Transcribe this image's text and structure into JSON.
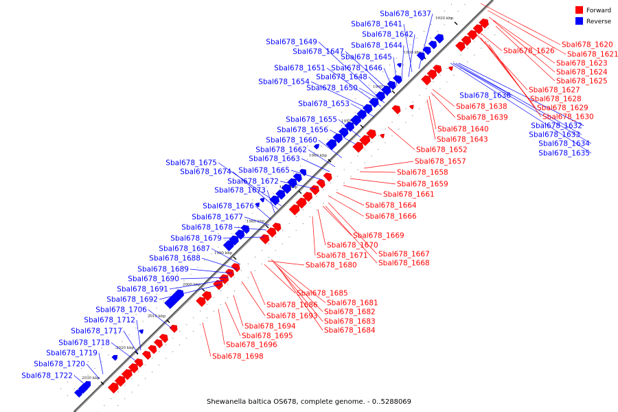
{
  "title": "Shewanella baltica OS678, complete genome. - 0..5288069",
  "legend": [
    {
      "label": "Forward",
      "color": "#ff0000"
    },
    {
      "label": "Reverse",
      "color": "#0000ff"
    }
  ],
  "colors": {
    "forward": "#ff0000",
    "reverse": "#0000ff",
    "axis": "#444444"
  },
  "ticks": [
    "1920 kbp",
    "1930 kbp",
    "1940 kbp",
    "1950 kbp",
    "1960 kbp",
    "1970 kbp",
    "1980 kbp",
    "1990 kbp",
    "2000 kbp",
    "2010 kbp",
    "2020 kbp",
    "2030 kbp"
  ],
  "forward_labels": [
    "Sbal678_1620",
    "Sbal678_1621",
    "Sbal678_1626",
    "Sbal678_1623",
    "Sbal678_1624",
    "Sbal678_1625",
    "Sbal678_1627",
    "Sbal678_1628",
    "Sbal678_1629",
    "Sbal678_1630",
    "Sbal678_1638",
    "Sbal678_1639",
    "Sbal678_1640",
    "Sbal678_1643",
    "Sbal678_1652",
    "Sbal678_1657",
    "Sbal678_1658",
    "Sbal678_1659",
    "Sbal678_1661",
    "Sbal678_1664",
    "Sbal678_1666",
    "Sbal678_1669",
    "Sbal678_1670",
    "Sbal678_1671",
    "Sbal678_1667",
    "Sbal678_1668",
    "Sbal678_1680",
    "Sbal678_1685",
    "Sbal678_1681",
    "Sbal678_1686",
    "Sbal678_1682",
    "Sbal678_1693",
    "Sbal678_1683",
    "Sbal678_1694",
    "Sbal678_1684",
    "Sbal678_1695",
    "Sbal678_1696",
    "Sbal678_1698"
  ],
  "reverse_labels": [
    "Sbal678_1637",
    "Sbal678_1641",
    "Sbal678_1642",
    "Sbal678_1649",
    "Sbal678_1644",
    "Sbal678_1647",
    "Sbal678_1645",
    "Sbal678_1651",
    "Sbal678_1646",
    "Sbal678_1648",
    "Sbal678_1654",
    "Sbal678_1650",
    "Sbal678_1636",
    "Sbal678_1653",
    "Sbal678_1632",
    "Sbal678_1633",
    "Sbal678_1634",
    "Sbal678_1635",
    "Sbal678_1655",
    "Sbal678_1656",
    "Sbal678_1660",
    "Sbal678_1662",
    "Sbal678_1663",
    "Sbal678_1675",
    "Sbal678_1665",
    "Sbal678_1674",
    "Sbal678_1672",
    "Sbal678_1673",
    "Sbal678_1676",
    "Sbal678_1677",
    "Sbal678_1678",
    "Sbal678_1679",
    "Sbal678_1687",
    "Sbal678_1688",
    "Sbal678_1689",
    "Sbal678_1690",
    "Sbal678_1691",
    "Sbal678_1692",
    "Sbal678_1706",
    "Sbal678_1712",
    "Sbal678_1717",
    "Sbal678_1718",
    "Sbal678_1719",
    "Sbal678_1720",
    "Sbal678_1722"
  ]
}
